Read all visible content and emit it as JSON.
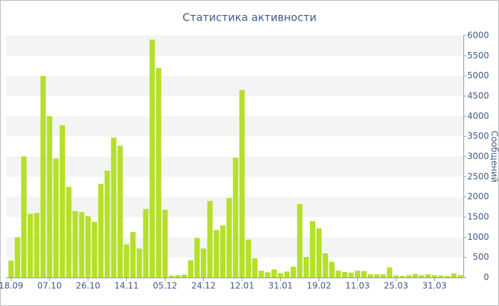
{
  "chart_data": {
    "type": "bar",
    "title": "Статистика активности",
    "y_label": "Сообщений",
    "categories": [
      "18.09",
      null,
      null,
      null,
      null,
      null,
      "07.10",
      null,
      null,
      null,
      null,
      null,
      "26.10",
      null,
      null,
      null,
      null,
      null,
      "14.11",
      null,
      null,
      null,
      null,
      null,
      "05.12",
      null,
      null,
      null,
      null,
      null,
      "24.12",
      null,
      null,
      null,
      null,
      null,
      "12.01",
      null,
      null,
      null,
      null,
      null,
      "31.01",
      null,
      null,
      null,
      null,
      null,
      "19.02",
      null,
      null,
      null,
      null,
      null,
      "11.03",
      null,
      null,
      null,
      null,
      null,
      "25.03",
      null,
      null,
      null,
      null,
      null,
      "31.03",
      null,
      null,
      null,
      null
    ],
    "values": [
      420,
      1000,
      3000,
      1580,
      1600,
      5000,
      4000,
      2950,
      3780,
      2250,
      1650,
      1620,
      1520,
      1380,
      2320,
      2650,
      3470,
      3270,
      820,
      1130,
      720,
      1700,
      5900,
      5200,
      1680,
      50,
      60,
      70,
      430,
      980,
      720,
      1900,
      1180,
      1290,
      1970,
      2970,
      4650,
      940,
      480,
      170,
      130,
      200,
      110,
      150,
      270,
      1820,
      510,
      1400,
      1220,
      600,
      390,
      170,
      140,
      120,
      170,
      160,
      80,
      80,
      80,
      250,
      50,
      40,
      60,
      90,
      60,
      80,
      60,
      50,
      40,
      100,
      60
    ],
    "color": "#b5e02a",
    "ylim": [
      0,
      6000
    ],
    "yticks": [
      0,
      500,
      1000,
      1500,
      2000,
      2500,
      3000,
      3500,
      4000,
      4500,
      5000,
      5500,
      6000
    ],
    "grid": true
  }
}
